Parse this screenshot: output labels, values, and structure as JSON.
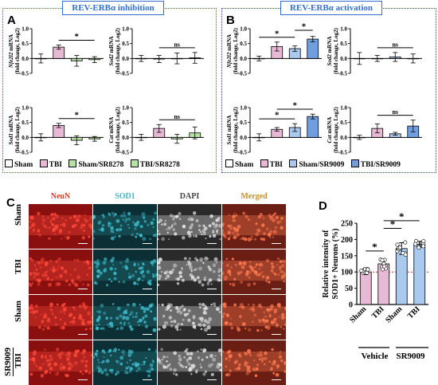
{
  "panel_titles": {
    "a": "REV-ERBα inhibition",
    "b": "REV-ERBα activation"
  },
  "panel_letters": [
    "A",
    "B",
    "C",
    "D"
  ],
  "legend_a": [
    "Sham",
    "TBI",
    "Sham/SR8278",
    "TBI/SR8278"
  ],
  "legend_b": [
    "Sham",
    "TBI",
    "Sham/SR9009",
    "TBI/SR9009"
  ],
  "colors": {
    "sham": "#ffffff",
    "tbi": "#e8b9d4",
    "inhibitor": "#b6e3a4",
    "activator": "#a9c9ef",
    "activator_tbi": "#6f9fe0",
    "title": "#2f6fd0",
    "neun": "#e23a2a",
    "sod1": "#3fb8c6",
    "merged": "#c8902a"
  },
  "chart_data": [
    {
      "id": "a-nfe2l2",
      "type": "bar",
      "ylabel": "Nfe2l2 mRNA (fold change, Log2)",
      "ylim": [
        -0.5,
        1.0
      ],
      "yticks": [
        "1.0",
        "0.5",
        "0.0",
        "-0.5"
      ],
      "values": [
        0.0,
        0.38,
        -0.08,
        -0.04
      ],
      "errors": [
        0.15,
        0.07,
        0.18,
        0.1
      ],
      "sig": [
        {
          "label": "*",
          "from": 1,
          "to": 3
        }
      ]
    },
    {
      "id": "a-sod2",
      "type": "bar",
      "ylabel": "Sod2 mRNA (fold change, Log2)",
      "ylim": [
        -0.5,
        1.0
      ],
      "yticks": [
        "1.0",
        "0.5",
        "0.0",
        "-0.5"
      ],
      "values": [
        0.0,
        -0.02,
        0.0,
        0.02
      ],
      "errors": [
        0.1,
        0.12,
        0.18,
        0.18
      ],
      "sig": [
        {
          "label": "ns",
          "from": 1,
          "to": 3
        }
      ]
    },
    {
      "id": "a-sod1",
      "type": "bar",
      "ylabel": "Sod1 mRNA (fold change, Log2)",
      "ylim": [
        -0.5,
        1.0
      ],
      "yticks": [
        "1.0",
        "0.5",
        "0.0",
        "-0.5"
      ],
      "values": [
        0.0,
        0.4,
        -0.1,
        -0.05
      ],
      "errors": [
        0.12,
        0.07,
        0.15,
        0.08
      ],
      "sig": [
        {
          "label": "*",
          "from": 1,
          "to": 3
        }
      ]
    },
    {
      "id": "a-cat",
      "type": "bar",
      "ylabel": "Cat mRNA (fold change, Log2)",
      "ylim": [
        -0.5,
        1.0
      ],
      "yticks": [
        "1.0",
        "0.5",
        "0.0",
        "-0.5"
      ],
      "values": [
        0.0,
        0.3,
        -0.05,
        0.15
      ],
      "errors": [
        0.1,
        0.13,
        0.15,
        0.2
      ],
      "sig": [
        {
          "label": "ns",
          "from": 1,
          "to": 3
        }
      ]
    },
    {
      "id": "b-nfe2l2",
      "type": "bar",
      "ylabel": "Nfe2l2 mRNA (fold change, Log2)",
      "ylim": [
        -0.5,
        1.0
      ],
      "yticks": [
        "1.0",
        "0.5",
        "0.0",
        "-0.5"
      ],
      "values": [
        0.0,
        0.4,
        0.33,
        0.65
      ],
      "errors": [
        0.08,
        0.15,
        0.09,
        0.09
      ],
      "sig": [
        {
          "label": "*",
          "from": 0,
          "to": 2
        },
        {
          "label": "*",
          "from": 2,
          "to": 3
        }
      ]
    },
    {
      "id": "b-sod2",
      "type": "bar",
      "ylabel": "Sod2 mRNA (fold change, Log2)",
      "ylim": [
        -0.5,
        1.0
      ],
      "yticks": [
        "1.0",
        "0.5",
        "0.0",
        "-0.5"
      ],
      "values": [
        0.0,
        0.0,
        0.05,
        0.0
      ],
      "errors": [
        0.2,
        0.1,
        0.15,
        0.15
      ],
      "sig": [
        {
          "label": "ns",
          "from": 1,
          "to": 3
        }
      ]
    },
    {
      "id": "b-sod1",
      "type": "bar",
      "ylabel": "Sod1 mRNA (fold change, Log2)",
      "ylim": [
        -0.5,
        1.0
      ],
      "yticks": [
        "1.0",
        "0.5",
        "0.0",
        "-0.5"
      ],
      "values": [
        0.0,
        0.27,
        0.33,
        0.7
      ],
      "errors": [
        0.12,
        0.06,
        0.13,
        0.08
      ],
      "sig": [
        {
          "label": "*",
          "from": 0,
          "to": 2
        },
        {
          "label": "*",
          "from": 1,
          "to": 3
        }
      ]
    },
    {
      "id": "b-cat",
      "type": "bar",
      "ylabel": "Cat mRNA (fold change, Log2)",
      "ylim": [
        -0.5,
        1.0
      ],
      "yticks": [
        "1.0",
        "0.5",
        "0.0",
        "-0.5"
      ],
      "values": [
        0.0,
        0.3,
        0.12,
        0.38
      ],
      "errors": [
        0.07,
        0.15,
        0.05,
        0.2
      ],
      "sig": [
        {
          "label": "ns",
          "from": 1,
          "to": 3
        }
      ]
    },
    {
      "id": "d-sod1-intensity",
      "type": "bar",
      "ylabel": "Relative intensity of SOD1+ Neurons (%)",
      "ylim": [
        0,
        250
      ],
      "yticks": [
        "0",
        "50",
        "100",
        "150",
        "200",
        "250"
      ],
      "categories": [
        "Sham",
        "TBI",
        "Sham",
        "TBI"
      ],
      "groups": [
        "Vehicle",
        "SR9009"
      ],
      "values": [
        100,
        125,
        172,
        185
      ],
      "errors": [
        8,
        15,
        18,
        9
      ],
      "sig": [
        {
          "label": "*",
          "from": 0,
          "to": 1
        },
        {
          "label": "*",
          "from": 1,
          "to": 2
        },
        {
          "label": "*",
          "from": 1,
          "to": 3
        }
      ],
      "reference_line": 100
    }
  ],
  "micrograph": {
    "channels": [
      "NeuN",
      "SOD1",
      "DAPI",
      "Merged"
    ],
    "rows": [
      "Sham",
      "TBI",
      "Sham",
      "TBI"
    ],
    "row_group": "SR9009"
  }
}
